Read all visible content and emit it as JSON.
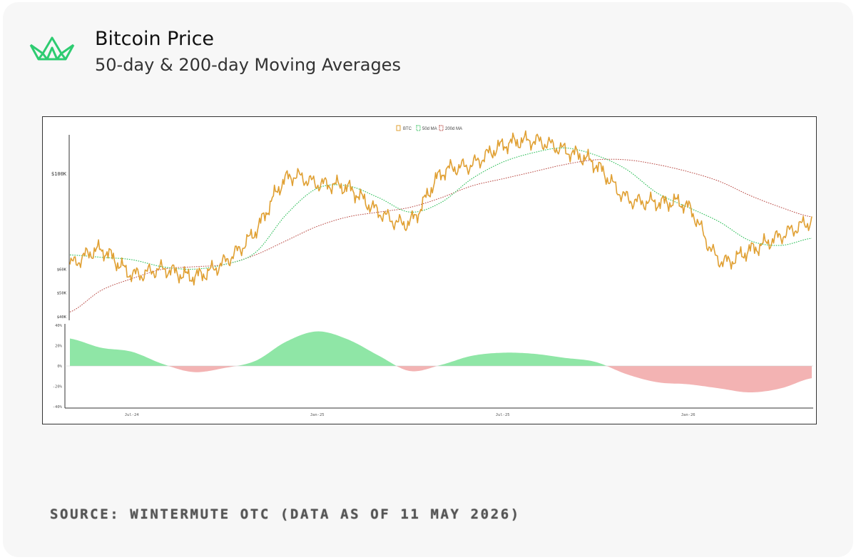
{
  "header": {
    "title": "Bitcoin Price",
    "subtitle": "50-day & 200-day Moving Averages"
  },
  "footer": {
    "source": "SOURCE: WINTERMUTE OTC (DATA AS OF 11 MAY 2026)"
  },
  "colors": {
    "btc": "#e0a033",
    "ma50": "#2fbf5a",
    "ma200": "#b7453f",
    "positive_fill": "#8fe6a6",
    "negative_fill": "#f3b3b3",
    "logo": "#2ecc71"
  },
  "icons": {
    "logo": "wintermute-logo-icon"
  },
  "chart_data": [
    {
      "type": "line",
      "legend": {
        "placement": "top-center",
        "entries": [
          "BTC",
          "50d MA",
          "200d MA"
        ]
      },
      "y_tick_labels": [
        "$100K",
        "$60K",
        "$50K",
        "$40K"
      ],
      "y_ticks": [
        100000,
        60000,
        50000,
        40000
      ],
      "ylim": [
        40000,
        115000
      ],
      "x_range": [
        "2024-05",
        "2026-05"
      ],
      "x_tick_labels": [
        "Jul-24",
        "Jan-25",
        "Jul-25",
        "Jan-26"
      ],
      "x_ticks": [
        "2024-07",
        "2025-01",
        "2025-07",
        "2026-01"
      ],
      "grid": false,
      "series": [
        {
          "name": "BTC",
          "x": [
            "2024-05",
            "2024-06",
            "2024-07",
            "2024-08",
            "2024-09",
            "2024-10",
            "2024-11",
            "2024-12",
            "2025-01",
            "2025-02",
            "2025-03",
            "2025-04",
            "2025-05",
            "2025-06",
            "2025-07",
            "2025-08",
            "2025-09",
            "2025-10",
            "2025-11",
            "2025-12",
            "2026-01",
            "2026-02",
            "2026-03",
            "2026-04",
            "2026-05"
          ],
          "values": [
            62000,
            68000,
            58000,
            60000,
            57000,
            63000,
            76000,
            98000,
            96000,
            94000,
            84000,
            80000,
            100000,
            104000,
            112000,
            114000,
            110000,
            104000,
            90000,
            88000,
            86000,
            64000,
            68000,
            74000,
            80000
          ]
        },
        {
          "name": "50d MA",
          "x": [
            "2024-05",
            "2024-06",
            "2024-07",
            "2024-08",
            "2024-09",
            "2024-10",
            "2024-11",
            "2024-12",
            "2025-01",
            "2025-02",
            "2025-03",
            "2025-04",
            "2025-05",
            "2025-06",
            "2025-07",
            "2025-08",
            "2025-09",
            "2025-10",
            "2025-11",
            "2025-12",
            "2026-01",
            "2026-02",
            "2026-03",
            "2026-04",
            "2026-05"
          ],
          "values": [
            66000,
            65000,
            64000,
            61000,
            60000,
            62000,
            67000,
            83000,
            94000,
            95000,
            90000,
            84000,
            88000,
            98000,
            105000,
            109000,
            111000,
            108000,
            102000,
            92000,
            86000,
            80000,
            72000,
            70000,
            73000
          ]
        },
        {
          "name": "200d MA",
          "x": [
            "2024-05",
            "2024-06",
            "2024-07",
            "2024-08",
            "2024-09",
            "2024-10",
            "2024-11",
            "2024-12",
            "2025-01",
            "2025-02",
            "2025-03",
            "2025-04",
            "2025-05",
            "2025-06",
            "2025-07",
            "2025-08",
            "2025-09",
            "2025-10",
            "2025-11",
            "2025-12",
            "2026-01",
            "2026-02",
            "2026-03",
            "2026-04",
            "2026-05"
          ],
          "values": [
            42000,
            51000,
            56000,
            60000,
            61000,
            62000,
            66000,
            72000,
            78000,
            82000,
            84000,
            86000,
            90000,
            95000,
            98000,
            101000,
            104000,
            106000,
            106000,
            104000,
            101000,
            97000,
            91000,
            86000,
            82000
          ]
        }
      ]
    },
    {
      "type": "area",
      "y_tick_labels": [
        "40%",
        "20%",
        "0%",
        "-20%",
        "-40%"
      ],
      "y_ticks": [
        40,
        20,
        0,
        -20,
        -40
      ],
      "ylim": [
        -40,
        40
      ],
      "x": [
        "2024-05",
        "2024-06",
        "2024-07",
        "2024-08",
        "2024-09",
        "2024-10",
        "2024-11",
        "2024-12",
        "2025-01",
        "2025-02",
        "2025-03",
        "2025-04",
        "2025-05",
        "2025-06",
        "2025-07",
        "2025-08",
        "2025-09",
        "2025-10",
        "2025-11",
        "2025-12",
        "2026-01",
        "2026-02",
        "2026-03",
        "2026-04",
        "2026-05"
      ],
      "values": [
        27,
        18,
        14,
        2,
        -6,
        -2,
        5,
        24,
        34,
        26,
        10,
        -5,
        1,
        10,
        13,
        12,
        8,
        4,
        -8,
        -16,
        -18,
        -22,
        -26,
        -22,
        -12
      ]
    }
  ]
}
